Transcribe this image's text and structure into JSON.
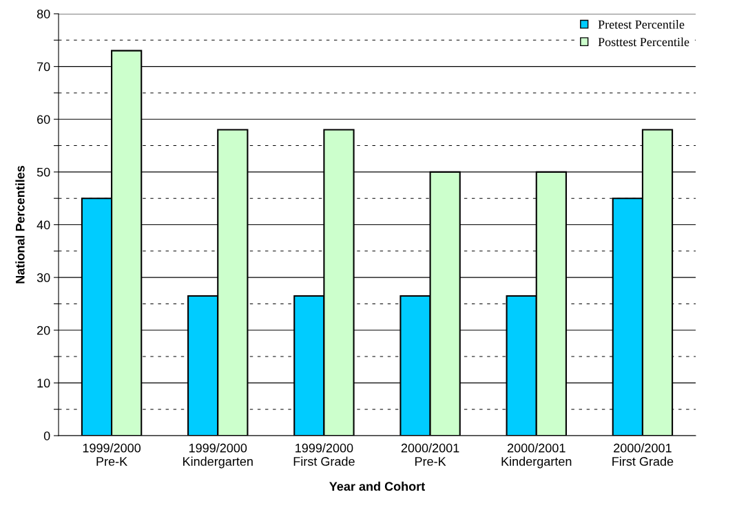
{
  "chart_data": {
    "type": "bar",
    "xlabel": "Year and Cohort",
    "ylabel": "National Percentiles",
    "categories": [
      "1999/2000\nPre-K",
      "1999/2000\nKindergarten",
      "1999/2000\nFirst Grade",
      "2000/2001\nPre-K",
      "2000/2001\nKindergarten",
      "2000/2001\nFirst Grade"
    ],
    "series": [
      {
        "name": "Pretest Percentile",
        "color": "#00ccff",
        "values": [
          45,
          26.5,
          26.5,
          26.5,
          26.5,
          45
        ]
      },
      {
        "name": "Posttest Percentile",
        "color": "#ccffcc",
        "values": [
          73,
          58,
          58,
          50,
          50,
          58
        ]
      }
    ],
    "ylim": [
      0,
      80
    ],
    "yticks": [
      0,
      {
        "value": 5,
        "label": null
      },
      10,
      {
        "value": 15,
        "label": null
      },
      20,
      {
        "value": 25,
        "label": null
      },
      30,
      {
        "value": 35,
        "label": null
      },
      40,
      {
        "value": 45,
        "label": null
      },
      50,
      {
        "value": 55,
        "label": null
      },
      60,
      {
        "value": 65,
        "label": null
      },
      70,
      {
        "value": 75,
        "label": null
      },
      80
    ],
    "grid": "y",
    "legend": "top right"
  }
}
